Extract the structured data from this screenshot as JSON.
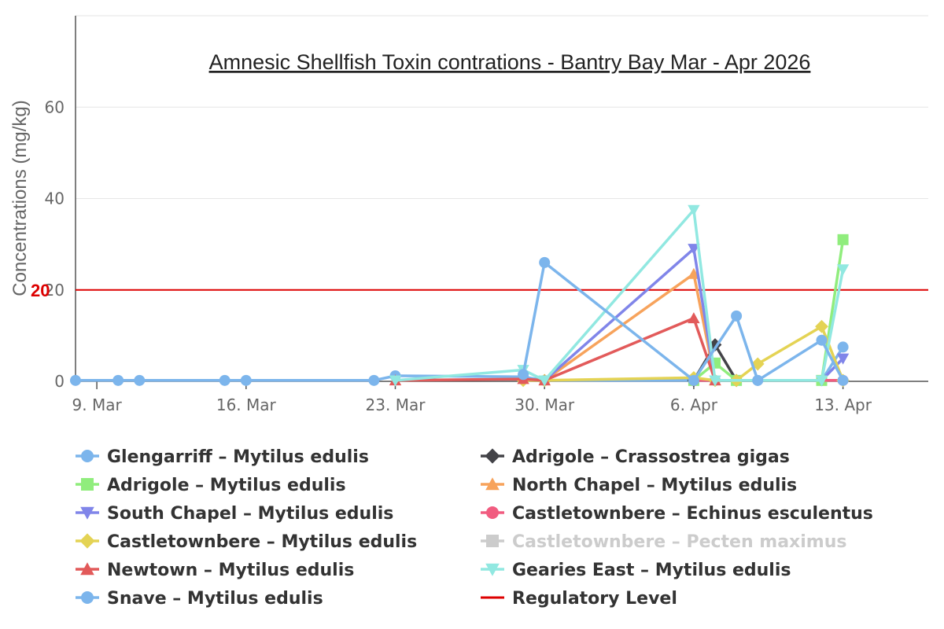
{
  "chart_data": {
    "type": "line",
    "title": "Amnesic Shellfish Toxin contrations - Bantry Bay Mar - Apr 2026",
    "xlabel": "",
    "ylabel": "Concentrations (mg/kg)",
    "xlim": [
      "2026-03-08",
      "2026-04-17"
    ],
    "ylim": [
      0,
      80
    ],
    "x_ticks": [
      {
        "date": "2026-03-09",
        "label": "9. Mar"
      },
      {
        "date": "2026-03-16",
        "label": "16. Mar"
      },
      {
        "date": "2026-03-23",
        "label": "23. Mar"
      },
      {
        "date": "2026-03-30",
        "label": "30. Mar"
      },
      {
        "date": "2026-04-06",
        "label": "6. Apr"
      },
      {
        "date": "2026-04-13",
        "label": "13. Apr"
      }
    ],
    "y_ticks": [
      0,
      20,
      40,
      60
    ],
    "grid": true,
    "legend_position": "bottom",
    "regulatory_level": {
      "name": "Regulatory Level",
      "value": 20,
      "label": "20",
      "color": "#dd0000"
    },
    "series": [
      {
        "name": "Glengarriff – Mytilus edulis",
        "color": "#7cb5ec",
        "marker": "circle",
        "visible": true,
        "points": [
          [
            "2026-03-08",
            0.2
          ],
          [
            "2026-03-10",
            0.2
          ],
          [
            "2026-03-11",
            0.2
          ],
          [
            "2026-03-15",
            0.2
          ],
          [
            "2026-03-16",
            0.2
          ],
          [
            "2026-03-22",
            0.2
          ],
          [
            "2026-03-23",
            1.2
          ],
          [
            "2026-03-29",
            1.0
          ],
          [
            "2026-03-30",
            0.2
          ],
          [
            "2026-04-06",
            0.2
          ],
          [
            "2026-04-07",
            0.2
          ],
          [
            "2026-04-08",
            0.2
          ],
          [
            "2026-04-09",
            0.2
          ],
          [
            "2026-04-12",
            0.2
          ],
          [
            "2026-04-13",
            7.5
          ]
        ]
      },
      {
        "name": "Adrigole – Crassostrea gigas",
        "color": "#434348",
        "marker": "diamond",
        "visible": true,
        "points": [
          [
            "2026-04-06",
            0.2
          ],
          [
            "2026-04-07",
            8.0
          ],
          [
            "2026-04-08",
            0.2
          ]
        ]
      },
      {
        "name": "Adrigole – Mytilus edulis",
        "color": "#90ed7d",
        "marker": "square",
        "visible": true,
        "points": [
          [
            "2026-04-06",
            0.2
          ],
          [
            "2026-04-07",
            4.0
          ],
          [
            "2026-04-08",
            0.2
          ],
          [
            "2026-04-12",
            0.2
          ],
          [
            "2026-04-13",
            31.0
          ]
        ]
      },
      {
        "name": "North Chapel – Mytilus edulis",
        "color": "#f7a35c",
        "marker": "triangle",
        "visible": true,
        "points": [
          [
            "2026-03-30",
            0.2
          ],
          [
            "2026-04-06",
            23.5
          ],
          [
            "2026-04-07",
            0.2
          ]
        ]
      },
      {
        "name": "South Chapel – Mytilus edulis",
        "color": "#8085e9",
        "marker": "triangle-down",
        "visible": true,
        "points": [
          [
            "2026-03-30",
            0.2
          ],
          [
            "2026-04-06",
            29.0
          ],
          [
            "2026-04-07",
            0.2
          ],
          [
            "2026-04-12",
            0.2
          ],
          [
            "2026-04-13",
            5.0
          ]
        ]
      },
      {
        "name": "Castletownbere – Echinus esculentus",
        "color": "#f15c80",
        "marker": "circle",
        "visible": true,
        "points": [
          [
            "2026-04-06",
            0.2
          ],
          [
            "2026-04-13",
            0.2
          ]
        ]
      },
      {
        "name": "Castletownbere – Mytilus edulis",
        "color": "#e4d354",
        "marker": "diamond",
        "visible": true,
        "points": [
          [
            "2026-03-29",
            0.2
          ],
          [
            "2026-03-30",
            0.2
          ],
          [
            "2026-04-06",
            0.8
          ],
          [
            "2026-04-07",
            0.2
          ],
          [
            "2026-04-08",
            0.2
          ],
          [
            "2026-04-09",
            3.8
          ],
          [
            "2026-04-12",
            12.0
          ],
          [
            "2026-04-13",
            0.2
          ]
        ]
      },
      {
        "name": "Castletownbere – Pecten maximus",
        "color": "#cccccc",
        "marker": "square",
        "visible": false,
        "points": []
      },
      {
        "name": "Newtown – Mytilus edulis",
        "color": "#e25a5a",
        "marker": "triangle",
        "visible": true,
        "points": [
          [
            "2026-03-23",
            0.2
          ],
          [
            "2026-03-29",
            0.5
          ],
          [
            "2026-03-30",
            0.2
          ],
          [
            "2026-04-06",
            13.8
          ],
          [
            "2026-04-07",
            0.2
          ]
        ]
      },
      {
        "name": "Gearies East – Mytilus edulis",
        "color": "#91e8e1",
        "marker": "triangle-down",
        "visible": true,
        "points": [
          [
            "2026-03-23",
            0.2
          ],
          [
            "2026-03-29",
            2.5
          ],
          [
            "2026-03-30",
            0.2
          ],
          [
            "2026-04-06",
            37.5
          ],
          [
            "2026-04-07",
            0.2
          ],
          [
            "2026-04-12",
            0.2
          ],
          [
            "2026-04-13",
            24.5
          ]
        ]
      },
      {
        "name": "Snave – Mytilus edulis",
        "color": "#7cb5ec",
        "marker": "circle",
        "visible": true,
        "points": [
          [
            "2026-03-29",
            1.5
          ],
          [
            "2026-03-30",
            26.0
          ],
          [
            "2026-04-06",
            0.2
          ],
          [
            "2026-04-08",
            14.3
          ],
          [
            "2026-04-09",
            0.2
          ],
          [
            "2026-04-12",
            9.0
          ],
          [
            "2026-04-13",
            0.2
          ]
        ]
      }
    ]
  }
}
